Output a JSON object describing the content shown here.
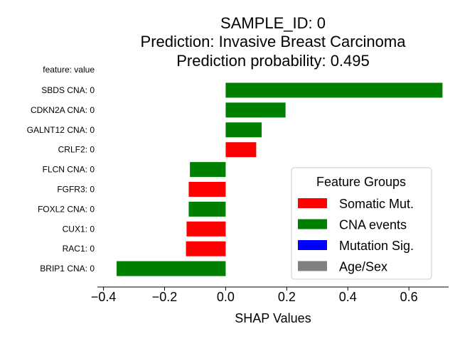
{
  "chart_data": {
    "type": "bar",
    "orientation": "horizontal",
    "title_lines": [
      "SAMPLE_ID: 0",
      "Prediction: Invasive Breast Carcinoma",
      "Prediction probability: 0.495"
    ],
    "ylabel": "feature: value",
    "xlabel": "SHAP Values",
    "xlim": [
      -0.42,
      0.73
    ],
    "xticks": [
      -0.4,
      -0.2,
      0.0,
      0.2,
      0.4,
      0.6
    ],
    "xtick_labels": [
      "−0.4",
      "−0.2",
      "0.0",
      "0.2",
      "0.4",
      "0.6"
    ],
    "grid": false,
    "categories": [
      "SBDS CNA: 0",
      "CDKN2A CNA: 0",
      "GALNT12 CNA: 0",
      "CRLF2: 0",
      "FLCN CNA: 0",
      "FGFR3: 0",
      "FOXL2 CNA: 0",
      "CUX1: 0",
      "RAC1: 0",
      "BRIP1 CNA: 0"
    ],
    "values": [
      0.71,
      0.196,
      0.118,
      0.1,
      -0.117,
      -0.121,
      -0.121,
      -0.128,
      -0.13,
      -0.357
    ],
    "groups": [
      "CNA events",
      "CNA events",
      "CNA events",
      "Somatic Mut.",
      "CNA events",
      "Somatic Mut.",
      "CNA events",
      "Somatic Mut.",
      "Somatic Mut.",
      "CNA events"
    ],
    "legend": {
      "title": "Feature Groups",
      "position": "lower-right",
      "entries": [
        {
          "label": "Somatic Mut.",
          "color": "#ff0000"
        },
        {
          "label": "CNA events",
          "color": "#008000"
        },
        {
          "label": "Mutation Sig.",
          "color": "#0000ff"
        },
        {
          "label": "Age/Sex",
          "color": "#808080"
        }
      ]
    }
  }
}
